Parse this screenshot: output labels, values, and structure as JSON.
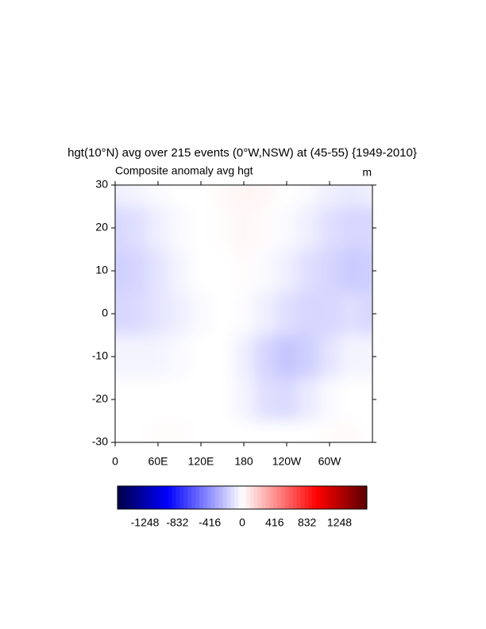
{
  "chart_data": {
    "type": "contour",
    "title": "hgt(10°N) avg over 215 events (0°W,NSW) at (45-55) {1949-2010}",
    "subtitle": "Composite anomaly avg hgt",
    "units": "m",
    "xlim": [
      0,
      360
    ],
    "xticks": [
      0,
      {
        "value": 60,
        "label": "60E"
      },
      {
        "value": 120,
        "label": "120E"
      },
      180,
      {
        "value": 240,
        "label": "120W"
      },
      {
        "value": 300,
        "label": "60W"
      }
    ],
    "ylim": [
      -30,
      30
    ],
    "yticks": [
      30,
      20,
      10,
      0,
      -10,
      -20,
      -30
    ],
    "field": {
      "lon": [
        0,
        30,
        60,
        90,
        120,
        150,
        180,
        210,
        240,
        270,
        300,
        330,
        360
      ],
      "lat": [
        30,
        20,
        10,
        0,
        -10,
        -20,
        -30
      ],
      "values": [
        [
          -60,
          -40,
          -20,
          0,
          0,
          20,
          40,
          30,
          0,
          -20,
          -60,
          -80,
          -60
        ],
        [
          -150,
          -120,
          -60,
          -20,
          0,
          10,
          30,
          10,
          -20,
          -60,
          -120,
          -150,
          -150
        ],
        [
          -180,
          -160,
          -100,
          -40,
          0,
          0,
          10,
          -20,
          -60,
          -120,
          -160,
          -200,
          -180
        ],
        [
          -150,
          -140,
          -100,
          -60,
          -20,
          0,
          -10,
          -60,
          -120,
          -160,
          -150,
          -120,
          -150
        ],
        [
          -40,
          -40,
          -40,
          -20,
          0,
          0,
          -60,
          -160,
          -220,
          -180,
          -100,
          -40,
          -40
        ],
        [
          0,
          0,
          0,
          0,
          0,
          0,
          -40,
          -120,
          -140,
          -80,
          -20,
          0,
          0
        ],
        [
          0,
          0,
          10,
          10,
          0,
          0,
          0,
          0,
          0,
          0,
          10,
          20,
          0
        ]
      ]
    },
    "clim": [
      -1600,
      1600
    ],
    "colorbar_ticks": [
      -1248,
      -832,
      -416,
      0,
      416,
      832,
      1248
    ]
  }
}
